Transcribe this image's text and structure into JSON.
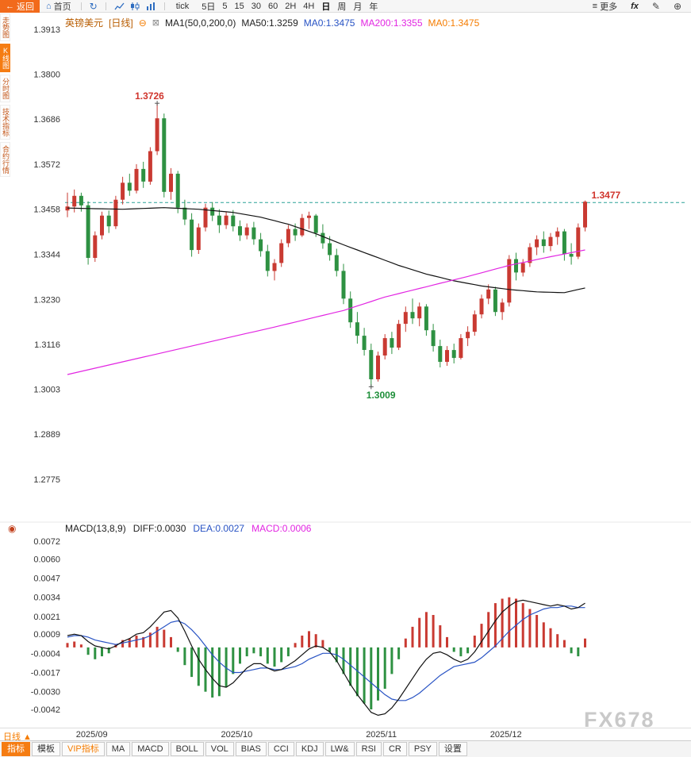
{
  "topbar": {
    "back_label": "返回",
    "home_label": "首页",
    "tick_label": "tick",
    "timeframes": [
      "5日",
      "5",
      "15",
      "30",
      "60",
      "2H",
      "4H",
      "日",
      "周",
      "月",
      "年"
    ],
    "active_timeframe": "日",
    "more_label": "更多",
    "fx_label": "fx"
  },
  "icons": {
    "back_arrow": "←",
    "home": "⌂",
    "refresh": "↻",
    "hamburger": "≡",
    "zoom_in": "⊕",
    "draw_pen": "✎",
    "collapse_minus": "⊖",
    "ma_settings": "⊠",
    "indicator_target": "◉"
  },
  "sidebar": {
    "items": [
      {
        "label": "走势图",
        "active": false
      },
      {
        "label": "K线图",
        "active": true
      },
      {
        "label": "分时图",
        "active": false
      },
      {
        "label": "技术指标",
        "active": false
      },
      {
        "label": "合约行情",
        "active": false
      }
    ]
  },
  "legend_main": {
    "symbol": "英镑美元",
    "period": "[日线]",
    "ma_group": "MA1(50,0,200,0)",
    "ma50": "MA50:1.3259",
    "ma0_blue": "MA0:1.3475",
    "ma200": "MA200:1.3355",
    "ma0_orange": "MA0:1.3475"
  },
  "legend_macd": {
    "title": "MACD(13,8,9)",
    "diff": "DIFF:0.0030",
    "dea": "DEA:0.0027",
    "macd": "MACD:0.0006"
  },
  "footer": {
    "period_label": "日线 ▲"
  },
  "watermark": "FX678",
  "bottombar": {
    "tabs": [
      {
        "label": "指标",
        "variant": "primary"
      },
      {
        "label": "模板",
        "variant": "default"
      },
      {
        "label": "VIP指标",
        "variant": "vip"
      },
      {
        "label": "MA",
        "variant": "default"
      },
      {
        "label": "MACD",
        "variant": "default"
      },
      {
        "label": "BOLL",
        "variant": "default"
      },
      {
        "label": "VOL",
        "variant": "default"
      },
      {
        "label": "BIAS",
        "variant": "default"
      },
      {
        "label": "CCI",
        "variant": "default"
      },
      {
        "label": "KDJ",
        "variant": "default"
      },
      {
        "label": "LW&",
        "variant": "default"
      },
      {
        "label": "RSI",
        "variant": "default"
      },
      {
        "label": "CR",
        "variant": "default"
      },
      {
        "label": "PSY",
        "variant": "default"
      },
      {
        "label": "设置",
        "variant": "default"
      }
    ]
  },
  "colors": {
    "up": "#c93a32",
    "down": "#2e9142",
    "ma50": "#111111",
    "ma200": "#e226e2",
    "diff": "#111111",
    "dea": "#2853c4",
    "price_line": "#2aa198"
  },
  "chart_data": {
    "type": "candlestick",
    "title": "英镑美元 日线 (GBP/USD daily with MA50/MA200 and MACD(13,8,9))",
    "main": {
      "ticks": [
        "1.3913",
        "1.3800",
        "1.3686",
        "1.3572",
        "1.3458",
        "1.3344",
        "1.3230",
        "1.3116",
        "1.3003",
        "1.2889",
        "1.2775"
      ],
      "price_line": 1.3475,
      "candles": [
        [
          1.3455,
          1.35,
          1.3438,
          1.3465
        ],
        [
          1.3465,
          1.3508,
          1.345,
          1.3492
        ],
        [
          1.3492,
          1.35,
          1.3452,
          1.3468
        ],
        [
          1.3468,
          1.3478,
          1.3318,
          1.3335
        ],
        [
          1.3335,
          1.3402,
          1.3325,
          1.3392
        ],
        [
          1.3392,
          1.3452,
          1.3382,
          1.3442
        ],
        [
          1.3442,
          1.3455,
          1.3398,
          1.3415
        ],
        [
          1.3415,
          1.3492,
          1.3408,
          1.3482
        ],
        [
          1.3482,
          1.354,
          1.347,
          1.3525
        ],
        [
          1.3525,
          1.3548,
          1.3492,
          1.3505
        ],
        [
          1.3505,
          1.3572,
          1.3498,
          1.356
        ],
        [
          1.356,
          1.3578,
          1.3512,
          1.3528
        ],
        [
          1.3528,
          1.3615,
          1.352,
          1.3605
        ],
        [
          1.3605,
          1.3726,
          1.3595,
          1.3688
        ],
        [
          1.3688,
          1.37,
          1.3488,
          1.3502
        ],
        [
          1.3502,
          1.3562,
          1.3482,
          1.3548
        ],
        [
          1.3548,
          1.3555,
          1.3448,
          1.3462
        ],
        [
          1.3462,
          1.3482,
          1.3418,
          1.3432
        ],
        [
          1.3432,
          1.3448,
          1.3338,
          1.3355
        ],
        [
          1.3355,
          1.3422,
          1.3345,
          1.3412
        ],
        [
          1.3412,
          1.3472,
          1.3402,
          1.3462
        ],
        [
          1.3462,
          1.3476,
          1.3428,
          1.3442
        ],
        [
          1.3442,
          1.3458,
          1.3398,
          1.3418
        ],
        [
          1.3418,
          1.3452,
          1.3408,
          1.3442
        ],
        [
          1.3442,
          1.3456,
          1.3402,
          1.3415
        ],
        [
          1.3415,
          1.343,
          1.3378,
          1.3392
        ],
        [
          1.3392,
          1.3422,
          1.3382,
          1.3412
        ],
        [
          1.3412,
          1.3426,
          1.3368,
          1.3382
        ],
        [
          1.3382,
          1.3398,
          1.3338,
          1.3352
        ],
        [
          1.3352,
          1.3368,
          1.3288,
          1.3302
        ],
        [
          1.3302,
          1.3332,
          1.3278,
          1.3322
        ],
        [
          1.3322,
          1.3382,
          1.3312,
          1.3372
        ],
        [
          1.3372,
          1.3418,
          1.3362,
          1.3408
        ],
        [
          1.3408,
          1.3422,
          1.3378,
          1.3392
        ],
        [
          1.3392,
          1.3446,
          1.3388,
          1.3436
        ],
        [
          1.3436,
          1.3452,
          1.3408,
          1.3442
        ],
        [
          1.3442,
          1.3446,
          1.3388,
          1.3398
        ],
        [
          1.3398,
          1.342,
          1.3358,
          1.3372
        ],
        [
          1.3372,
          1.339,
          1.3328,
          1.3342
        ],
        [
          1.3342,
          1.3358,
          1.3288,
          1.3302
        ],
        [
          1.3302,
          1.332,
          1.3218,
          1.3232
        ],
        [
          1.3232,
          1.325,
          1.3158,
          1.3172
        ],
        [
          1.3172,
          1.3198,
          1.3118,
          1.3138
        ],
        [
          1.3138,
          1.3158,
          1.3088,
          1.3102
        ],
        [
          1.3102,
          1.3118,
          1.3009,
          1.3028
        ],
        [
          1.3028,
          1.3098,
          1.3022,
          1.3088
        ],
        [
          1.3088,
          1.3142,
          1.3078,
          1.3132
        ],
        [
          1.3132,
          1.3148,
          1.3092,
          1.3108
        ],
        [
          1.3108,
          1.3178,
          1.3102,
          1.3168
        ],
        [
          1.3168,
          1.3212,
          1.3148,
          1.3198
        ],
        [
          1.3198,
          1.3232,
          1.3168,
          1.3182
        ],
        [
          1.3182,
          1.3222,
          1.3162,
          1.3212
        ],
        [
          1.3212,
          1.3218,
          1.3138,
          1.3152
        ],
        [
          1.3152,
          1.3168,
          1.3098,
          1.3112
        ],
        [
          1.3112,
          1.3128,
          1.3058,
          1.3072
        ],
        [
          1.3072,
          1.3112,
          1.3062,
          1.3102
        ],
        [
          1.3102,
          1.3118,
          1.3068,
          1.3082
        ],
        [
          1.3082,
          1.3142,
          1.3078,
          1.3132
        ],
        [
          1.3132,
          1.3162,
          1.3112,
          1.3148
        ],
        [
          1.3148,
          1.3202,
          1.3138,
          1.3192
        ],
        [
          1.3192,
          1.3242,
          1.3182,
          1.3232
        ],
        [
          1.3232,
          1.3268,
          1.3218,
          1.3255
        ],
        [
          1.3255,
          1.3262,
          1.3188,
          1.3198
        ],
        [
          1.3198,
          1.3232,
          1.3178,
          1.3222
        ],
        [
          1.3222,
          1.3342,
          1.3212,
          1.3332
        ],
        [
          1.3332,
          1.3348,
          1.3278,
          1.3298
        ],
        [
          1.3298,
          1.3332,
          1.3288,
          1.3322
        ],
        [
          1.3322,
          1.3372,
          1.3312,
          1.3362
        ],
        [
          1.3362,
          1.3392,
          1.3342,
          1.3382
        ],
        [
          1.3382,
          1.3402,
          1.3348,
          1.3365
        ],
        [
          1.3365,
          1.3398,
          1.3352,
          1.3388
        ],
        [
          1.3388,
          1.3412,
          1.3368,
          1.3402
        ],
        [
          1.3402,
          1.3408,
          1.3328,
          1.3345
        ],
        [
          1.3345,
          1.3372,
          1.3318,
          1.3338
        ],
        [
          1.3338,
          1.3422,
          1.3332,
          1.3412
        ],
        [
          1.3412,
          1.348,
          1.3402,
          1.3477
        ]
      ],
      "ma50_anchors": [
        [
          0,
          1.3461
        ],
        [
          8,
          1.3458
        ],
        [
          14,
          1.3462
        ],
        [
          19,
          1.3458
        ],
        [
          24,
          1.345
        ],
        [
          28,
          1.3438
        ],
        [
          32,
          1.342
        ],
        [
          36,
          1.3396
        ],
        [
          40,
          1.3368
        ],
        [
          44,
          1.3342
        ],
        [
          48,
          1.3316
        ],
        [
          52,
          1.3294
        ],
        [
          56,
          1.3277
        ],
        [
          60,
          1.3264
        ],
        [
          64,
          1.3255
        ],
        [
          68,
          1.3249
        ],
        [
          72,
          1.3247
        ],
        [
          75,
          1.3259
        ]
      ],
      "ma200_anchors": [
        [
          0,
          1.304
        ],
        [
          10,
          1.308
        ],
        [
          20,
          1.312
        ],
        [
          30,
          1.316
        ],
        [
          40,
          1.3202
        ],
        [
          46,
          1.3236
        ],
        [
          52,
          1.3262
        ],
        [
          58,
          1.3288
        ],
        [
          64,
          1.3316
        ],
        [
          70,
          1.3338
        ],
        [
          75,
          1.3355
        ]
      ]
    },
    "macd": {
      "ticks": [
        "0.0072",
        "0.0060",
        "0.0047",
        "0.0034",
        "0.0021",
        "0.0009",
        "-0.0004",
        "-0.0017",
        "-0.0030",
        "-0.0042"
      ],
      "diff": [
        0.0008,
        0.0009,
        0.0008,
        0.0004,
        0.0001,
        0.0,
        -0.0001,
        0.0001,
        0.0004,
        0.0006,
        0.0009,
        0.001,
        0.0014,
        0.0019,
        0.0024,
        0.0025,
        0.002,
        0.0011,
        0.0001,
        -0.0008,
        -0.0015,
        -0.0021,
        -0.0026,
        -0.0027,
        -0.0024,
        -0.0019,
        -0.0014,
        -0.0011,
        -0.0011,
        -0.0014,
        -0.0016,
        -0.0015,
        -0.0012,
        -0.0009,
        -0.0005,
        -0.0001,
        0.0001,
        0.0,
        -0.0003,
        -0.0009,
        -0.0017,
        -0.0025,
        -0.0032,
        -0.0038,
        -0.0044,
        -0.0046,
        -0.0045,
        -0.0041,
        -0.0035,
        -0.0028,
        -0.0021,
        -0.0014,
        -0.0008,
        -0.0004,
        -0.0003,
        -0.0005,
        -0.0008,
        -0.001,
        -0.0008,
        -0.0003,
        0.0004,
        0.0011,
        0.0018,
        0.0024,
        0.0028,
        0.0031,
        0.0032,
        0.0031,
        0.003,
        0.0029,
        0.0028,
        0.0029,
        0.0028,
        0.0026,
        0.0027,
        0.003
      ],
      "dea": [
        0.0007,
        0.0008,
        0.0008,
        0.0007,
        0.0005,
        0.0004,
        0.0003,
        0.0002,
        0.0003,
        0.0004,
        0.0005,
        0.0006,
        0.0008,
        0.0011,
        0.0014,
        0.0017,
        0.0018,
        0.0016,
        0.0012,
        0.0007,
        0.0001,
        -0.0005,
        -0.001,
        -0.0014,
        -0.0017,
        -0.0017,
        -0.0016,
        -0.0015,
        -0.0014,
        -0.0014,
        -0.0015,
        -0.0015,
        -0.0014,
        -0.0013,
        -0.0011,
        -0.0008,
        -0.0006,
        -0.0004,
        -0.0004,
        -0.0005,
        -0.0008,
        -0.0012,
        -0.0016,
        -0.002,
        -0.0024,
        -0.0028,
        -0.0032,
        -0.0035,
        -0.0036,
        -0.0036,
        -0.0034,
        -0.0031,
        -0.0027,
        -0.0023,
        -0.0019,
        -0.0016,
        -0.0013,
        -0.0012,
        -0.0011,
        -0.001,
        -0.0007,
        -0.0003,
        0.0001,
        0.0006,
        0.0011,
        0.0015,
        0.0019,
        0.0022,
        0.0024,
        0.0026,
        0.0027,
        0.0027,
        0.0028,
        0.0028,
        0.0027,
        0.0027
      ],
      "hist": [
        0.0003,
        0.0004,
        0.0002,
        -0.0005,
        -0.0008,
        -0.0006,
        -0.0004,
        0.0002,
        0.0005,
        0.0006,
        0.0008,
        0.0007,
        0.001,
        0.0014,
        0.0012,
        0.0007,
        -0.0003,
        -0.0012,
        -0.002,
        -0.0026,
        -0.003,
        -0.0034,
        -0.0033,
        -0.0027,
        -0.0018,
        -0.0011,
        -0.0006,
        -0.0004,
        -0.0006,
        -0.0011,
        -0.0013,
        -0.001,
        -0.0006,
        0.0003,
        0.0008,
        0.0011,
        0.0009,
        0.0005,
        -0.0003,
        -0.001,
        -0.0018,
        -0.0026,
        -0.0033,
        -0.0038,
        -0.0042,
        -0.0036,
        -0.0028,
        -0.0018,
        -0.0008,
        0.0006,
        0.0014,
        0.002,
        0.0024,
        0.0022,
        0.0015,
        0.0007,
        -0.0003,
        -0.0006,
        -0.0004,
        0.0008,
        0.0016,
        0.0024,
        0.003,
        0.0033,
        0.0034,
        0.0033,
        0.003,
        0.0026,
        0.0022,
        0.0017,
        0.0013,
        0.0009,
        0.0005,
        -0.0004,
        -0.0006,
        0.0006
      ]
    },
    "x_labels": [
      {
        "label": "2025/09",
        "i": 4
      },
      {
        "label": "2025/10",
        "i": 25
      },
      {
        "label": "2025/11",
        "i": 46
      },
      {
        "label": "2025/12",
        "i": 64
      }
    ],
    "annotations": {
      "high": {
        "label": "1.3726",
        "i": 13,
        "price": 1.3726
      },
      "low": {
        "label": "1.3009",
        "i": 44,
        "price": 1.3009
      },
      "last": {
        "label": "1.3477",
        "i": 75,
        "price": 1.3477
      }
    }
  }
}
